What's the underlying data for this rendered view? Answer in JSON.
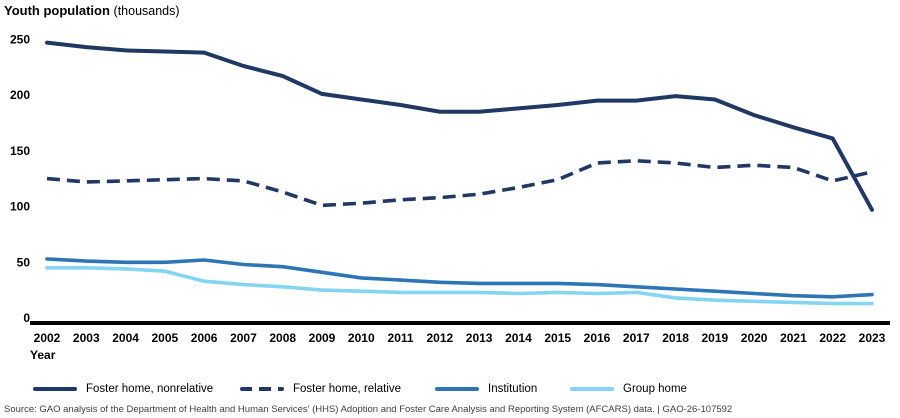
{
  "title": {
    "main": "Youth population",
    "unit": "(thousands)"
  },
  "source": {
    "text": "Source: GAO analysis of the Department of Health and Human Services' (HHS) Adoption and Foster Care Analysis and Reporting System (AFCARS) data.  |  GAO-26-107592"
  },
  "chart_data": {
    "type": "line",
    "title": "Youth population (thousands)",
    "xlabel": "Year",
    "ylabel": "Youth population (thousands)",
    "ylim": [
      0,
      250
    ],
    "yticks": [
      0,
      50,
      100,
      150,
      200,
      250
    ],
    "grid": false,
    "legend_position": "bottom",
    "categories": [
      "2002",
      "2003",
      "2004",
      "2005",
      "2006",
      "2007",
      "2008",
      "2009",
      "2010",
      "2011",
      "2012",
      "2013",
      "2014",
      "2015",
      "2016",
      "2017",
      "2018",
      "2019",
      "2020",
      "2021",
      "2022",
      "2023"
    ],
    "series": [
      {
        "name": "Foster home, nonrelative",
        "style": "solid",
        "color": "#1f3864",
        "values": [
          247,
          243,
          240,
          239,
          238,
          226,
          217,
          201,
          196,
          191,
          185,
          185,
          188,
          191,
          195,
          195,
          199,
          196,
          182,
          171,
          161,
          97
        ]
      },
      {
        "name": "Foster home, relative",
        "style": "dashed",
        "color": "#1f3864",
        "values": [
          125,
          122,
          123,
          124,
          125,
          123,
          113,
          101,
          103,
          106,
          108,
          111,
          117,
          124,
          139,
          141,
          139,
          135,
          137,
          135,
          123,
          131
        ]
      },
      {
        "name": "Institution",
        "style": "solid",
        "color": "#2e75b6",
        "values": [
          53,
          51,
          50,
          50,
          52,
          48,
          46,
          41,
          36,
          34,
          32,
          31,
          31,
          31,
          30,
          28,
          26,
          24,
          22,
          20,
          19,
          21
        ]
      },
      {
        "name": "Group home",
        "style": "solid",
        "color": "#84d5f0",
        "values": [
          45,
          45,
          44,
          42,
          33,
          30,
          28,
          25,
          24,
          23,
          23,
          23,
          22,
          23,
          22,
          23,
          18,
          16,
          15,
          14,
          13,
          13
        ]
      }
    ]
  }
}
